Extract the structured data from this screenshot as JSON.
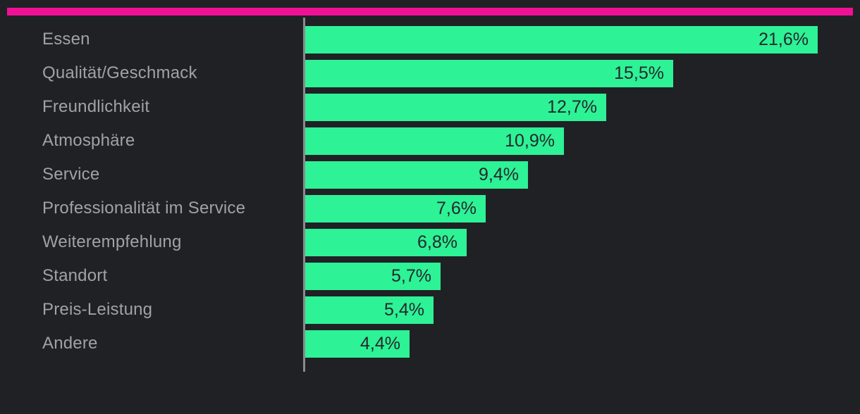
{
  "chart_data": {
    "type": "bar",
    "orientation": "horizontal",
    "title": "",
    "xlabel": "",
    "ylabel": "",
    "categories": [
      "Essen",
      "Qualität/Geschmack",
      "Freundlichkeit",
      "Atmosphäre",
      "Service",
      "Professionalität im Service",
      "Weiterempfehlung",
      "Standort",
      "Preis-Leistung",
      "Andere"
    ],
    "values": [
      21.6,
      15.5,
      12.7,
      10.9,
      9.4,
      7.6,
      6.8,
      5.7,
      5.4,
      4.4
    ],
    "value_labels": [
      "21,6%",
      "15,5%",
      "12,7%",
      "10,9%",
      "9,4%",
      "7,6%",
      "6,8%",
      "5,7%",
      "5,4%",
      "4,4%"
    ],
    "value_label_position": "inside-end",
    "xlim": [
      0,
      21.6
    ],
    "grid": false,
    "legend": false,
    "colors": {
      "background": "#202125",
      "bar": "#2DF296",
      "accent": "#F01096",
      "axis": "#8A8B8E",
      "category_label": "#A1A2A6",
      "value_label": "#26282C"
    }
  }
}
